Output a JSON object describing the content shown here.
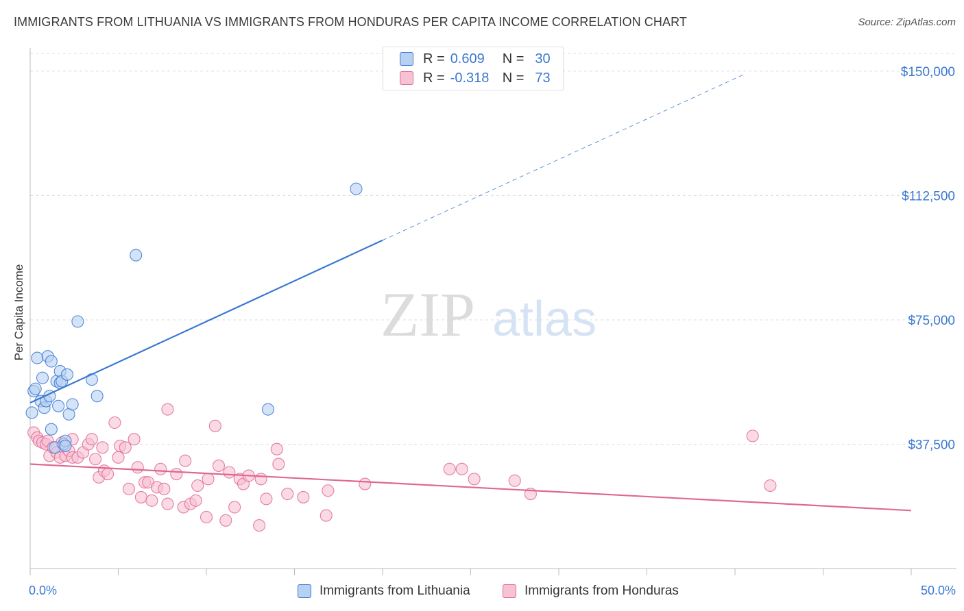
{
  "title": "IMMIGRANTS FROM LITHUANIA VS IMMIGRANTS FROM HONDURAS PER CAPITA INCOME CORRELATION CHART",
  "source": "Source: ZipAtlas.com",
  "watermark": {
    "part1": "ZIP",
    "part2": "atlas"
  },
  "legend": {
    "rows": [
      {
        "r_label": "R =",
        "r_value": "0.609",
        "n_label": "N =",
        "n_value": "30"
      },
      {
        "r_label": "R =",
        "r_value": "-0.318",
        "n_label": "N =",
        "n_value": "73"
      }
    ]
  },
  "colors": {
    "lithuania": "#3a78d0",
    "lithuania_fill": "#b7d1f2",
    "honduras": "#e0688f",
    "honduras_fill": "#f7c2d3",
    "grid": "#dddddd",
    "axis_label": "#3a78d0"
  },
  "chart_data": {
    "type": "scatter",
    "title": "IMMIGRANTS FROM LITHUANIA VS IMMIGRANTS FROM HONDURAS PER CAPITA INCOME CORRELATION CHART",
    "xlabel": "",
    "ylabel": "Per Capita Income",
    "xlim": [
      0,
      50
    ],
    "ylim": [
      0,
      157000
    ],
    "x_tick_labels": [
      "0.0%",
      "50.0%"
    ],
    "y_ticks": [
      37500,
      75000,
      112500,
      150000
    ],
    "y_tick_labels": [
      "$37,500",
      "$75,000",
      "$112,500",
      "$150,000"
    ],
    "grid": true,
    "legend_placement": "bottom",
    "series": [
      {
        "name": "Immigrants from Lithuania",
        "r": 0.609,
        "n": 30,
        "trend": {
          "x0": 0,
          "y0": 50000,
          "x_solid_end": 20.0,
          "y_solid_end": 99000,
          "x1": 40.5,
          "y1": 149000
        },
        "points": [
          [
            0.1,
            47000
          ],
          [
            0.2,
            53500
          ],
          [
            0.3,
            54200
          ],
          [
            0.4,
            63500
          ],
          [
            0.6,
            50500
          ],
          [
            0.7,
            57500
          ],
          [
            0.8,
            48500
          ],
          [
            0.9,
            50500
          ],
          [
            1.0,
            64000
          ],
          [
            1.1,
            52000
          ],
          [
            1.2,
            42000
          ],
          [
            1.2,
            62500
          ],
          [
            1.4,
            36500
          ],
          [
            1.5,
            56500
          ],
          [
            1.6,
            49000
          ],
          [
            1.7,
            56000
          ],
          [
            1.7,
            59500
          ],
          [
            1.8,
            56500
          ],
          [
            1.9,
            37500
          ],
          [
            2.0,
            38500
          ],
          [
            2.1,
            58500
          ],
          [
            2.2,
            46500
          ],
          [
            2.4,
            49500
          ],
          [
            2.7,
            74500
          ],
          [
            3.5,
            57000
          ],
          [
            3.8,
            52000
          ],
          [
            6.0,
            94500
          ],
          [
            13.5,
            48000
          ],
          [
            18.5,
            114500
          ],
          [
            2.0,
            37000
          ]
        ]
      },
      {
        "name": "Immigrants from Honduras",
        "r": -0.318,
        "n": 73,
        "trend": {
          "x0": 0,
          "y0": 31500,
          "x1": 50,
          "y1": 17500
        },
        "points": [
          [
            0.2,
            41000
          ],
          [
            0.4,
            39500
          ],
          [
            0.5,
            38500
          ],
          [
            0.7,
            38000
          ],
          [
            0.9,
            37500
          ],
          [
            1.0,
            38500
          ],
          [
            1.1,
            34000
          ],
          [
            1.3,
            36500
          ],
          [
            1.5,
            35000
          ],
          [
            1.7,
            33500
          ],
          [
            1.8,
            38000
          ],
          [
            2.0,
            34000
          ],
          [
            2.2,
            35500
          ],
          [
            2.4,
            33500
          ],
          [
            2.4,
            39000
          ],
          [
            2.7,
            33500
          ],
          [
            3.0,
            35000
          ],
          [
            3.3,
            37500
          ],
          [
            3.5,
            39000
          ],
          [
            3.7,
            33000
          ],
          [
            3.9,
            27500
          ],
          [
            4.1,
            36500
          ],
          [
            4.2,
            29500
          ],
          [
            4.4,
            28500
          ],
          [
            4.8,
            44000
          ],
          [
            5.0,
            33500
          ],
          [
            5.1,
            37000
          ],
          [
            5.4,
            36500
          ],
          [
            5.6,
            24000
          ],
          [
            5.9,
            39000
          ],
          [
            6.1,
            30500
          ],
          [
            6.3,
            21500
          ],
          [
            6.5,
            26000
          ],
          [
            6.7,
            26000
          ],
          [
            6.9,
            20500
          ],
          [
            7.2,
            24500
          ],
          [
            7.4,
            30000
          ],
          [
            7.6,
            24000
          ],
          [
            7.8,
            19500
          ],
          [
            7.8,
            48000
          ],
          [
            8.3,
            28500
          ],
          [
            8.7,
            18500
          ],
          [
            8.8,
            32500
          ],
          [
            9.1,
            19500
          ],
          [
            9.4,
            20500
          ],
          [
            9.5,
            25000
          ],
          [
            10.0,
            15500
          ],
          [
            10.1,
            27000
          ],
          [
            10.5,
            43000
          ],
          [
            10.7,
            31000
          ],
          [
            11.1,
            14500
          ],
          [
            11.3,
            29000
          ],
          [
            11.6,
            18500
          ],
          [
            11.9,
            27000
          ],
          [
            12.1,
            25500
          ],
          [
            12.4,
            28000
          ],
          [
            13.0,
            13000
          ],
          [
            13.1,
            27000
          ],
          [
            13.4,
            21000
          ],
          [
            14.0,
            36000
          ],
          [
            14.1,
            31500
          ],
          [
            14.6,
            22500
          ],
          [
            15.5,
            21500
          ],
          [
            16.8,
            16000
          ],
          [
            16.9,
            23500
          ],
          [
            19.0,
            25500
          ],
          [
            23.8,
            30000
          ],
          [
            24.5,
            30000
          ],
          [
            25.2,
            27000
          ],
          [
            27.5,
            26500
          ],
          [
            28.4,
            22500
          ],
          [
            41.0,
            40000
          ],
          [
            42.0,
            25000
          ]
        ]
      }
    ]
  }
}
